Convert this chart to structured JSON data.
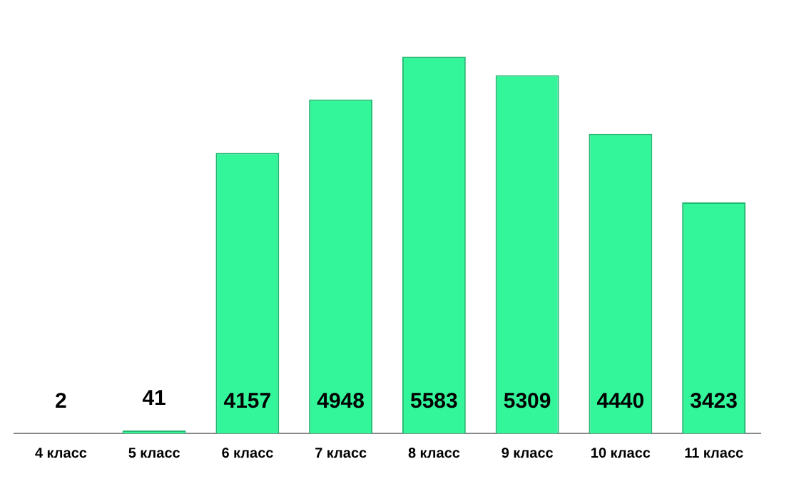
{
  "chart_data": {
    "type": "bar",
    "categories": [
      "4 класс",
      "5 класс",
      "6 класс",
      "7 класс",
      "8 класс",
      "9 класс",
      "10 класс",
      "11 класс"
    ],
    "values": [
      2,
      41,
      4157,
      4948,
      5583,
      5309,
      4440,
      3423
    ],
    "color": "#33f59a",
    "data_labels": true,
    "grid": false,
    "legend": false
  }
}
